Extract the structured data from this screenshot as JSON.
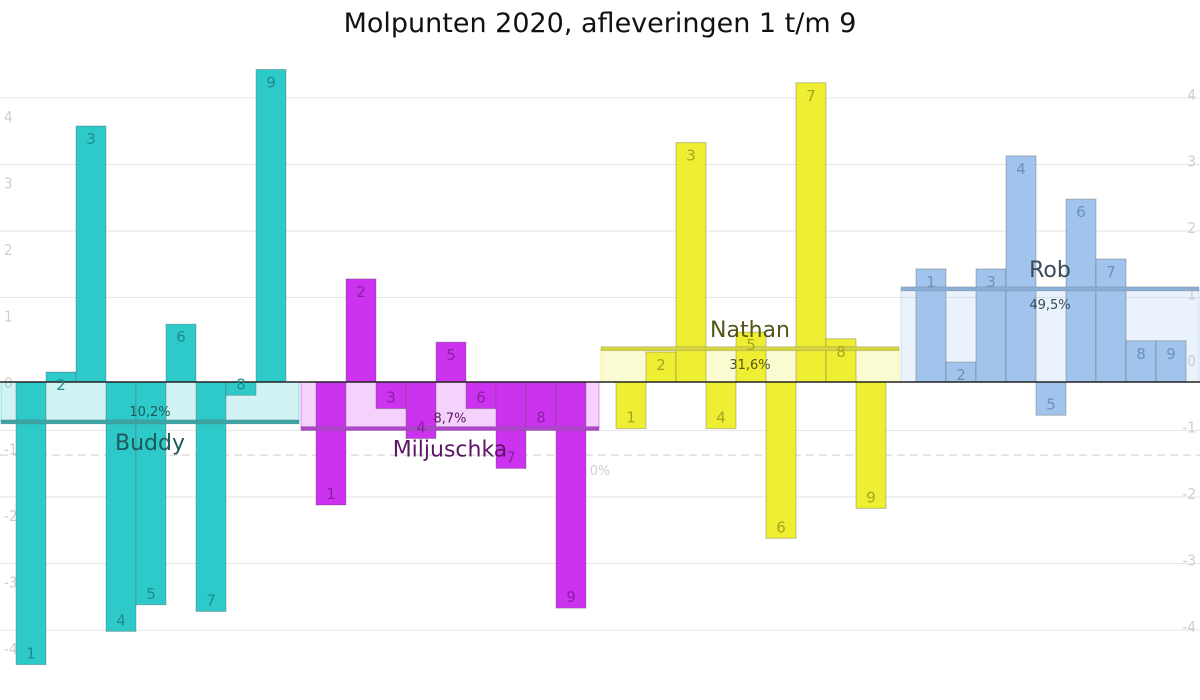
{
  "chart_data": {
    "type": "bar",
    "title": "Molpunten 2020, afleveringen 1 t/m 9",
    "yticks_left": [
      "4",
      "3",
      "2",
      "1",
      "0",
      "-1",
      "-2",
      "-3",
      "-4"
    ],
    "yticks_right": [
      "4",
      "3",
      "2",
      "1",
      "0",
      "-1",
      "-2",
      "-3",
      "-4"
    ],
    "ylim": [
      -4.3,
      4.8
    ],
    "grid": true,
    "reference_line": {
      "value": -1.1,
      "label": "0%"
    },
    "categories": [
      "1",
      "2",
      "3",
      "4",
      "5",
      "6",
      "7",
      "8",
      "9"
    ],
    "series": [
      {
        "name": "Buddy",
        "color": "#2ec9c9",
        "values": [
          -4.25,
          0.15,
          3.85,
          -3.75,
          -3.35,
          0.87,
          -3.45,
          -0.2,
          4.7
        ],
        "average": -0.6,
        "percentage": "10,2%"
      },
      {
        "name": "Miljuschka",
        "color": "#cc33ee",
        "values": [
          -1.85,
          1.55,
          -0.4,
          -0.85,
          0.6,
          -0.4,
          -1.3,
          -0.7,
          -3.4
        ],
        "average": -0.7,
        "percentage": "8,7%"
      },
      {
        "name": "Nathan",
        "color": "#eeee33",
        "values": [
          -0.7,
          0.45,
          3.6,
          -0.7,
          0.75,
          -2.35,
          4.5,
          0.65,
          -1.9
        ],
        "average": 0.5,
        "percentage": "31,6%"
      },
      {
        "name": "Rob",
        "color": "#a0c4ec",
        "values": [
          1.7,
          0.3,
          1.7,
          3.4,
          -0.5,
          2.75,
          1.85,
          0.62,
          0.62
        ],
        "average": 1.4,
        "percentage": "49,5%"
      }
    ]
  }
}
